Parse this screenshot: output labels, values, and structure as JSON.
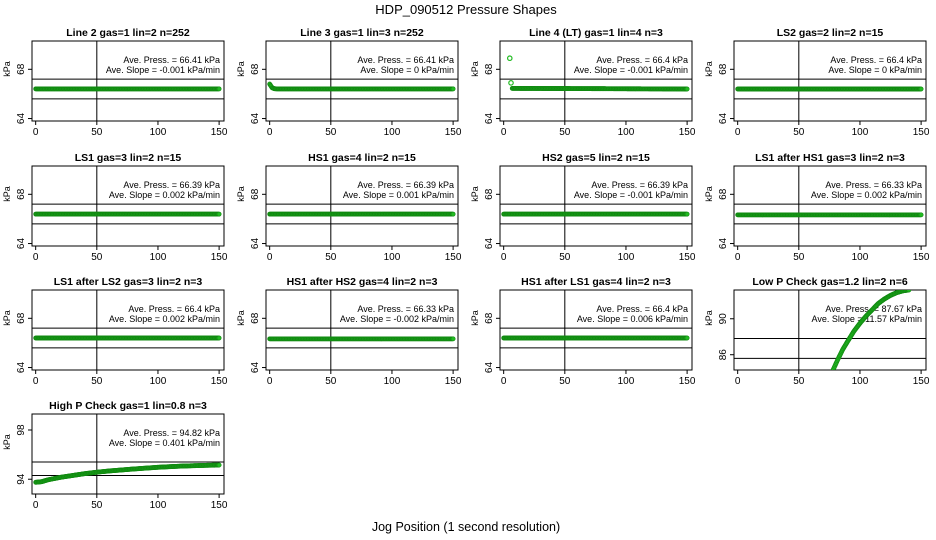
{
  "figure": {
    "title": "HDP_090512  Pressure Shapes",
    "xlabel": "Jog Position (1 second resolution)"
  },
  "chart_data": [
    {
      "type": "scatter",
      "title": "Line 2 gas=1 lin=2 n=252",
      "ylabel": "kPa",
      "xlim": [
        -3,
        154
      ],
      "ylim": [
        63.8,
        70.3
      ],
      "yticks": [
        64,
        68
      ],
      "xticks": [
        0,
        50,
        100,
        150
      ],
      "hlines": [
        65.6,
        67.2
      ],
      "vline": 50,
      "annotations": [
        "Ave. Press. = 66.41  kPa",
        "Ave. Slope = -0.001  kPa/min"
      ],
      "x": [
        0,
        150
      ],
      "y": [
        66.41,
        66.41
      ]
    },
    {
      "type": "scatter",
      "title": "Line 3 gas=1 lin=3 n=252",
      "ylabel": "kPa",
      "xlim": [
        -3,
        154
      ],
      "ylim": [
        63.8,
        70.3
      ],
      "yticks": [
        64,
        68
      ],
      "xticks": [
        0,
        50,
        100,
        150
      ],
      "hlines": [
        65.6,
        67.2
      ],
      "vline": 50,
      "annotations": [
        "Ave. Press. = 66.41  kPa",
        "Ave. Slope = 0  kPa/min"
      ],
      "x": [
        0,
        2,
        4,
        6,
        150
      ],
      "y": [
        66.8,
        66.5,
        66.42,
        66.41,
        66.41
      ]
    },
    {
      "type": "scatter",
      "title": "Line 4 (LT) gas=1 lin=4 n=3",
      "ylabel": "kPa",
      "xlim": [
        -3,
        154
      ],
      "ylim": [
        63.8,
        70.3
      ],
      "yticks": [
        64,
        68
      ],
      "xticks": [
        0,
        50,
        100,
        150
      ],
      "hlines": [
        65.6,
        67.2
      ],
      "vline": 50,
      "annotations": [
        "Ave. Press. = 66.4  kPa",
        "Ave. Slope = -0.001  kPa/min"
      ],
      "x": [
        5,
        6,
        7,
        150
      ],
      "y": [
        68.9,
        66.9,
        66.45,
        66.4
      ],
      "outliers": [
        [
          5,
          68.9
        ],
        [
          6,
          66.9
        ]
      ]
    },
    {
      "type": "scatter",
      "title": "LS2 gas=2 lin=2 n=15",
      "ylabel": "kPa",
      "xlim": [
        -3,
        154
      ],
      "ylim": [
        63.8,
        70.3
      ],
      "yticks": [
        64,
        68
      ],
      "xticks": [
        0,
        50,
        100,
        150
      ],
      "hlines": [
        65.6,
        67.2
      ],
      "vline": 50,
      "annotations": [
        "Ave. Press. = 66.4  kPa",
        "Ave. Slope = 0  kPa/min"
      ],
      "x": [
        0,
        150
      ],
      "y": [
        66.4,
        66.4
      ]
    },
    {
      "type": "scatter",
      "title": "LS1 gas=3 lin=2 n=15",
      "ylabel": "kPa",
      "xlim": [
        -3,
        154
      ],
      "ylim": [
        63.8,
        70.3
      ],
      "yticks": [
        64,
        68
      ],
      "xticks": [
        0,
        50,
        100,
        150
      ],
      "hlines": [
        65.6,
        67.2
      ],
      "vline": 50,
      "annotations": [
        "Ave. Press. = 66.39  kPa",
        "Ave. Slope = 0.002  kPa/min"
      ],
      "x": [
        0,
        150
      ],
      "y": [
        66.39,
        66.39
      ]
    },
    {
      "type": "scatter",
      "title": "HS1 gas=4 lin=2 n=15",
      "ylabel": "kPa",
      "xlim": [
        -3,
        154
      ],
      "ylim": [
        63.8,
        70.3
      ],
      "yticks": [
        64,
        68
      ],
      "xticks": [
        0,
        50,
        100,
        150
      ],
      "hlines": [
        65.6,
        67.2
      ],
      "vline": 50,
      "annotations": [
        "Ave. Press. = 66.39  kPa",
        "Ave. Slope = 0.001  kPa/min"
      ],
      "x": [
        0,
        150
      ],
      "y": [
        66.39,
        66.39
      ]
    },
    {
      "type": "scatter",
      "title": "HS2 gas=5 lin=2 n=15",
      "ylabel": "kPa",
      "xlim": [
        -3,
        154
      ],
      "ylim": [
        63.8,
        70.3
      ],
      "yticks": [
        64,
        68
      ],
      "xticks": [
        0,
        50,
        100,
        150
      ],
      "hlines": [
        65.6,
        67.2
      ],
      "vline": 50,
      "annotations": [
        "Ave. Press. = 66.39  kPa",
        "Ave. Slope = -0.001  kPa/min"
      ],
      "x": [
        0,
        150
      ],
      "y": [
        66.39,
        66.39
      ]
    },
    {
      "type": "scatter",
      "title": "LS1 after HS1 gas=3 lin=2 n=3",
      "ylabel": "kPa",
      "xlim": [
        -3,
        154
      ],
      "ylim": [
        63.8,
        70.3
      ],
      "yticks": [
        64,
        68
      ],
      "xticks": [
        0,
        50,
        100,
        150
      ],
      "hlines": [
        65.6,
        67.2
      ],
      "vline": 50,
      "annotations": [
        "Ave. Press. = 66.33  kPa",
        "Ave. Slope = 0.002  kPa/min"
      ],
      "x": [
        0,
        150
      ],
      "y": [
        66.33,
        66.33
      ]
    },
    {
      "type": "scatter",
      "title": "LS1 after LS2 gas=3 lin=2 n=3",
      "ylabel": "kPa",
      "xlim": [
        -3,
        154
      ],
      "ylim": [
        63.8,
        70.3
      ],
      "yticks": [
        64,
        68
      ],
      "xticks": [
        0,
        50,
        100,
        150
      ],
      "hlines": [
        65.6,
        67.2
      ],
      "vline": 50,
      "annotations": [
        "Ave. Press. = 66.4  kPa",
        "Ave. Slope = 0.002  kPa/min"
      ],
      "x": [
        0,
        150
      ],
      "y": [
        66.4,
        66.4
      ]
    },
    {
      "type": "scatter",
      "title": "HS1 after HS2 gas=4 lin=2 n=3",
      "ylabel": "kPa",
      "xlim": [
        -3,
        154
      ],
      "ylim": [
        63.8,
        70.3
      ],
      "yticks": [
        64,
        68
      ],
      "xticks": [
        0,
        50,
        100,
        150
      ],
      "hlines": [
        65.6,
        67.2
      ],
      "vline": 50,
      "annotations": [
        "Ave. Press. = 66.33  kPa",
        "Ave. Slope = -0.002  kPa/min"
      ],
      "x": [
        0,
        150
      ],
      "y": [
        66.33,
        66.33
      ]
    },
    {
      "type": "scatter",
      "title": "HS1 after LS1 gas=4 lin=2 n=3",
      "ylabel": "kPa",
      "xlim": [
        -3,
        154
      ],
      "ylim": [
        63.8,
        70.3
      ],
      "yticks": [
        64,
        68
      ],
      "xticks": [
        0,
        50,
        100,
        150
      ],
      "hlines": [
        65.6,
        67.2
      ],
      "vline": 50,
      "annotations": [
        "Ave. Press. = 66.4  kPa",
        "Ave. Slope = 0.006  kPa/min"
      ],
      "x": [
        0,
        150
      ],
      "y": [
        66.4,
        66.4
      ]
    },
    {
      "type": "scatter",
      "title": "Low P Check gas=1.2 lin=2 n=6",
      "ylabel": "kPa",
      "xlim": [
        -3,
        154
      ],
      "ylim": [
        84.3,
        93.2
      ],
      "yticks": [
        86,
        90
      ],
      "xticks": [
        0,
        50,
        100,
        150
      ],
      "hlines": [
        87.8,
        85.6
      ],
      "vline": 50,
      "annotations": [
        "Ave. Press. = 87.67  kPa",
        "Ave. Slope = 11.57  kPa/min"
      ],
      "x": [
        78,
        82,
        86,
        90,
        95,
        100,
        105,
        110,
        115,
        120,
        125,
        130,
        135,
        140
      ],
      "y": [
        84.3,
        85.5,
        86.6,
        87.5,
        88.6,
        89.5,
        90.3,
        91.0,
        91.7,
        92.2,
        92.6,
        92.9,
        93.1,
        93.2
      ]
    },
    {
      "type": "scatter",
      "title": "High P Check gas=1 lin=0.8 n=3",
      "ylabel": "kPa",
      "xlim": [
        -3,
        154
      ],
      "ylim": [
        92.8,
        99.3
      ],
      "yticks": [
        94,
        98
      ],
      "xticks": [
        0,
        50,
        100,
        150
      ],
      "hlines": [
        95.4,
        94.3
      ],
      "vline": 50,
      "annotations": [
        "Ave. Press. = 94.82  kPa",
        "Ave. Slope = 0.401  kPa/min"
      ],
      "x": [
        0,
        5,
        10,
        20,
        30,
        40,
        50,
        60,
        70,
        80,
        90,
        100,
        110,
        120,
        130,
        140,
        150
      ],
      "y": [
        93.75,
        93.8,
        93.95,
        94.15,
        94.3,
        94.45,
        94.57,
        94.67,
        94.75,
        94.83,
        94.9,
        94.97,
        95.02,
        95.07,
        95.1,
        95.13,
        95.15
      ]
    }
  ],
  "colors": {
    "points": "#22bb22",
    "point_edge": "#118811",
    "axis": "#000000",
    "background": "#ffffff"
  }
}
